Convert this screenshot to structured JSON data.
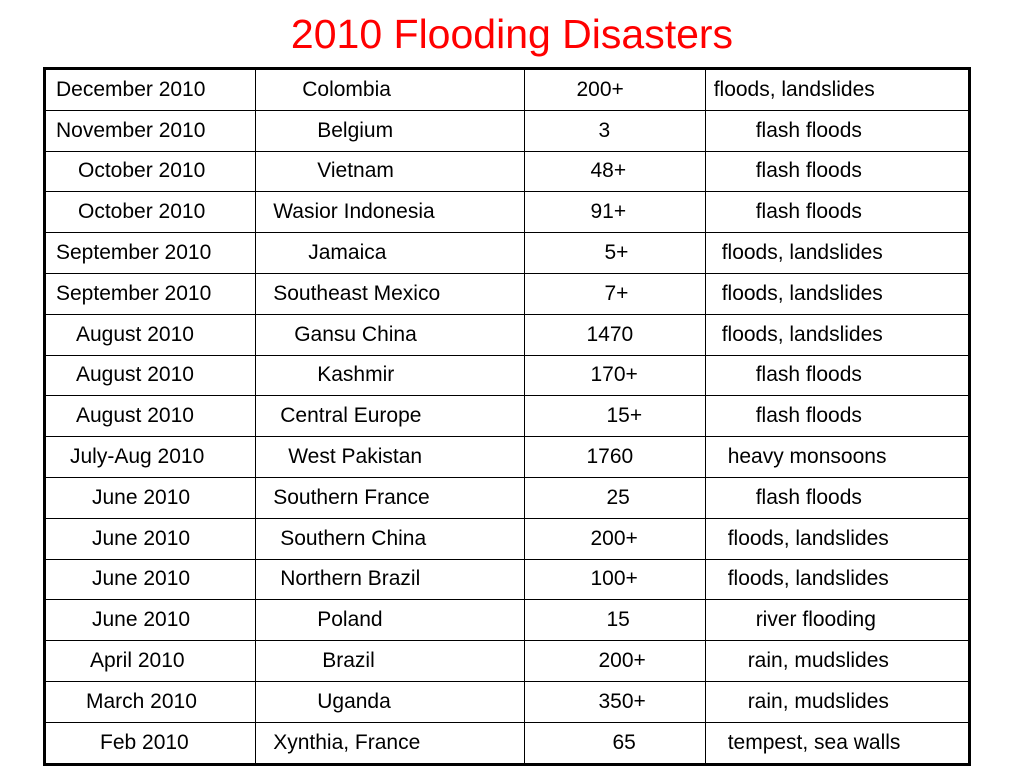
{
  "slide": {
    "title": "2010 Flooding Disasters"
  },
  "table": {
    "rows": [
      {
        "date": "December 2010",
        "location": "   Colombia",
        "deaths": "200+",
        "type": "floods, landslides"
      },
      {
        "date": "November 2010",
        "location": "     Belgium",
        "deaths": "   3",
        "type": "      flash floods"
      },
      {
        "date": "  October 2010",
        "location": "     Vietnam",
        "deaths": "  48+",
        "type": "      flash floods"
      },
      {
        "date": "  October 2010",
        "location": "Wasior Indonesia",
        "deaths": "  91+",
        "type": "      flash floods"
      },
      {
        "date": "September 2010",
        "location": "   Jamaica",
        "deaths": "    5+",
        "type": "  floods, landslides"
      },
      {
        "date": "September 2010",
        "location": "Southeast Mexico",
        "deaths": "    7+",
        "type": "  floods, landslides"
      },
      {
        "date": "   August 2010",
        "location": "   Gansu China",
        "deaths": " 1470",
        "type": "  floods, landslides"
      },
      {
        "date": "   August 2010",
        "location": "     Kashmir",
        "deaths": "  170+",
        "type": "      flash floods"
      },
      {
        "date": "   August 2010",
        "location": " Central Europe",
        "deaths": "    15+",
        "type": "      flash floods"
      },
      {
        "date": "  July-Aug 2010",
        "location": "  West Pakistan",
        "deaths": " 1760",
        "type": "   heavy monsoons"
      },
      {
        "date": "     June 2010",
        "location": "Southern France",
        "deaths": "    25",
        "type": "      flash floods"
      },
      {
        "date": "     June 2010",
        "location": " Southern China",
        "deaths": "  200+",
        "type": "   floods, landslides"
      },
      {
        "date": "     June 2010",
        "location": " Northern Brazil",
        "deaths": "  100+",
        "type": "   floods, landslides"
      },
      {
        "date": "     June 2010",
        "location": "     Poland",
        "deaths": "    15",
        "type": "      river flooding"
      },
      {
        "date": "    April  2010",
        "location": "      Brazil",
        "deaths": "   200+",
        "type": "     rain, mudslides"
      },
      {
        "date": "   March 2010",
        "location": "     Uganda",
        "deaths": "   350+",
        "type": "     rain, mudslides"
      },
      {
        "date": "     Feb 2010",
        "location": "Xynthia, France",
        "deaths": "    65",
        "type": "   tempest, sea walls"
      }
    ]
  }
}
